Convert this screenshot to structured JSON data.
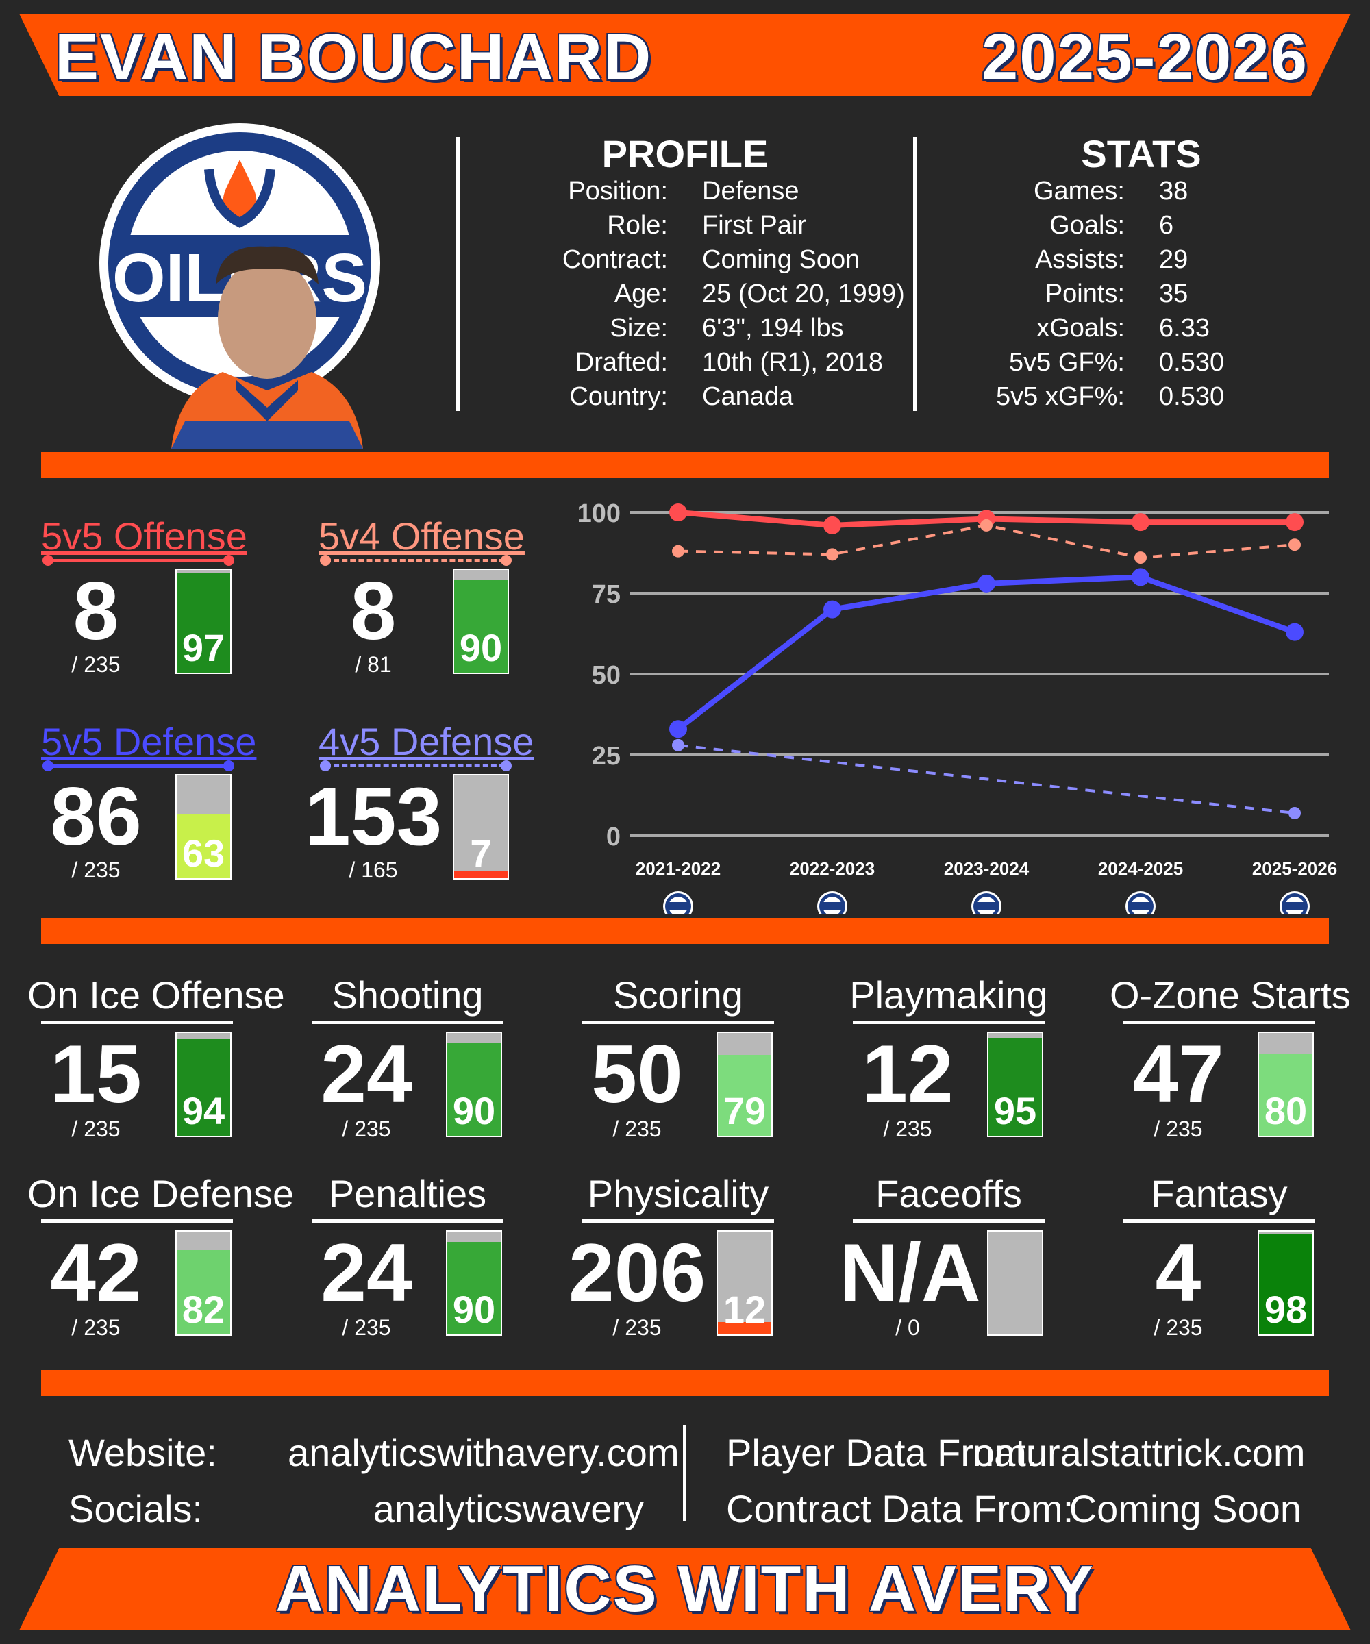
{
  "header": {
    "player_name": "EVAN BOUCHARD",
    "season": "2025-2026"
  },
  "profile": {
    "title": "PROFILE",
    "rows": [
      {
        "key": "Position:",
        "value": "Defense"
      },
      {
        "key": "Role:",
        "value": "First Pair"
      },
      {
        "key": "Contract:",
        "value": "Coming Soon"
      },
      {
        "key": "Age:",
        "value": "25 (Oct 20, 1999)"
      },
      {
        "key": "Size:",
        "value": "6'3\", 194 lbs"
      },
      {
        "key": "Drafted:",
        "value": "10th (R1), 2018"
      },
      {
        "key": "Country:",
        "value": "Canada"
      }
    ]
  },
  "stats": {
    "title": "STATS",
    "rows": [
      {
        "key": "Games:",
        "value": "38"
      },
      {
        "key": "Goals:",
        "value": "6"
      },
      {
        "key": "Assists:",
        "value": "29"
      },
      {
        "key": "Points:",
        "value": "35"
      },
      {
        "key": "xGoals:",
        "value": "6.33"
      },
      {
        "key": "5v5 GF%:",
        "value": "0.530"
      },
      {
        "key": "5v5 xGF%:",
        "value": "0.530"
      }
    ]
  },
  "team_logo_text": "OILERS",
  "ratings": [
    {
      "title": "5v5 Offense",
      "rank": "8",
      "total": "/ 235",
      "percentile": "97",
      "pct": 97,
      "color": "#ff4d50",
      "bar_color": "#1e8c1e",
      "dashed": false
    },
    {
      "title": "5v4 Offense",
      "rank": "8",
      "total": "/ 81",
      "percentile": "90",
      "pct": 90,
      "color": "#ff9780",
      "bar_color": "#37a837",
      "dashed": true
    },
    {
      "title": "5v5 Defense",
      "rank": "86",
      "total": "/ 235",
      "percentile": "63",
      "pct": 63,
      "color": "#4b4bff",
      "bar_color": "#c8f04a",
      "dashed": false
    },
    {
      "title": "4v5 Defense",
      "rank": "153",
      "total": "/ 165",
      "percentile": "7",
      "pct": 7,
      "color": "#8c8cff",
      "bar_color": "#ff3c1e",
      "dashed": true
    }
  ],
  "chart_data": {
    "type": "line",
    "x": [
      "2021-2022",
      "2022-2023",
      "2023-2024",
      "2024-2025",
      "2025-2026"
    ],
    "yticks": [
      "100",
      "75",
      "50",
      "25",
      "0"
    ],
    "ylim": [
      0,
      100
    ],
    "grid": true,
    "series": [
      {
        "name": "5v5 Offense",
        "color": "#ff4d50",
        "dashed": false,
        "values": [
          100,
          96,
          98,
          97,
          97
        ]
      },
      {
        "name": "5v4 Offense",
        "color": "#ff9780",
        "dashed": true,
        "values": [
          88,
          87,
          96,
          86,
          90
        ]
      },
      {
        "name": "5v5 Defense",
        "color": "#4b4bff",
        "dashed": false,
        "values": [
          33,
          70,
          78,
          80,
          63
        ]
      },
      {
        "name": "4v5 Defense",
        "color": "#8c8cff",
        "dashed": true,
        "values": [
          28,
          null,
          null,
          null,
          7
        ]
      }
    ]
  },
  "categories": [
    {
      "title": "On Ice Offense",
      "rank": "15",
      "total": "/ 235",
      "percentile": "94",
      "pct": 94,
      "bar_color": "#1e8c1e"
    },
    {
      "title": "Shooting",
      "rank": "24",
      "total": "/ 235",
      "percentile": "90",
      "pct": 90,
      "bar_color": "#37a837"
    },
    {
      "title": "Scoring",
      "rank": "50",
      "total": "/ 235",
      "percentile": "79",
      "pct": 79,
      "bar_color": "#7ddc7d"
    },
    {
      "title": "Playmaking",
      "rank": "12",
      "total": "/ 235",
      "percentile": "95",
      "pct": 95,
      "bar_color": "#1e8c1e"
    },
    {
      "title": "O-Zone Starts",
      "rank": "47",
      "total": "/ 235",
      "percentile": "80",
      "pct": 80,
      "bar_color": "#7ddc7d"
    },
    {
      "title": "On Ice Defense",
      "rank": "42",
      "total": "/ 235",
      "percentile": "82",
      "pct": 82,
      "bar_color": "#6ed26e"
    },
    {
      "title": "Penalties",
      "rank": "24",
      "total": "/ 235",
      "percentile": "90",
      "pct": 90,
      "bar_color": "#37a837"
    },
    {
      "title": "Physicality",
      "rank": "206",
      "total": "/ 235",
      "percentile": "12",
      "pct": 12,
      "bar_color": "#ff4a14"
    },
    {
      "title": "Faceoffs",
      "rank": "N/A",
      "total": "/ 0",
      "percentile": "",
      "pct": 0,
      "bar_color": "#6a6a6a"
    },
    {
      "title": "Fantasy",
      "rank": "4",
      "total": "/ 235",
      "percentile": "98",
      "pct": 98,
      "bar_color": "#0a820a"
    }
  ],
  "footer": {
    "website_label": "Website:",
    "website_value": "analyticswithavery.com",
    "socials_label": "Socials:",
    "socials_value": "analyticswavery",
    "player_data_label": "Player Data From:",
    "player_data_value": "naturalstattrick.com",
    "contract_data_label": "Contract Data From:",
    "contract_data_value": "Coming Soon",
    "brand": "ANALYTICS WITH AVERY"
  }
}
